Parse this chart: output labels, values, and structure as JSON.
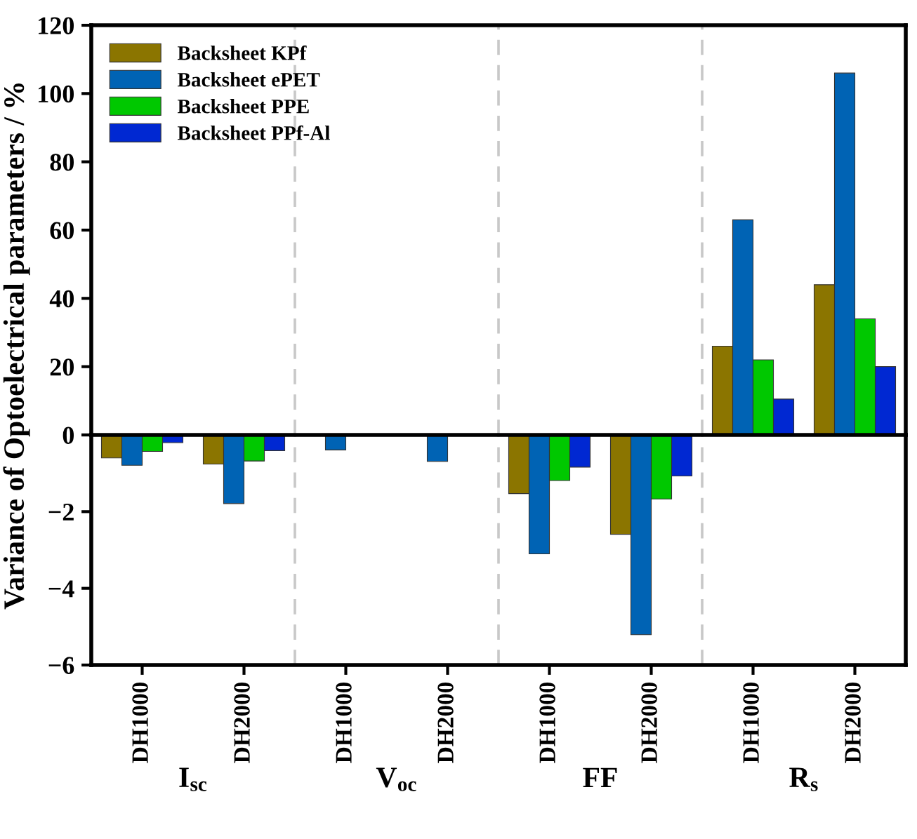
{
  "chart_data": [
    {
      "type": "bar",
      "ylabel": "Variance of Optoelectrical parameters / %",
      "ylim": [
        0,
        120
      ],
      "yticks": [
        {
          "value": 0,
          "label": null
        },
        20,
        40,
        60,
        80,
        100,
        120
      ],
      "tick_labels": "y",
      "legend": "top left",
      "series": [
        {
          "name": "Backsheet KPf",
          "color": "#8b7500",
          "values": [
            null,
            null,
            null,
            null,
            null,
            null,
            26,
            44
          ]
        },
        {
          "name": "Backsheet ePET",
          "color": "#0063b4",
          "values": [
            null,
            null,
            null,
            null,
            null,
            null,
            63,
            106
          ]
        },
        {
          "name": "Backsheet PPE",
          "color": "#00c800",
          "values": [
            null,
            null,
            null,
            null,
            null,
            null,
            22,
            34
          ]
        },
        {
          "name": "Backsheet PPf-Al",
          "color": "#0028d2",
          "values": [
            null,
            null,
            null,
            null,
            null,
            null,
            10.5,
            20
          ]
        }
      ]
    },
    {
      "type": "bar",
      "categories": [
        "DH1000",
        "DH2000",
        "DH1000",
        "DH2000",
        "DH1000",
        "DH2000",
        "DH1000",
        "DH2000"
      ],
      "ylim": [
        -6,
        0
      ],
      "yticks": [
        -6,
        -4,
        -2,
        0
      ],
      "annotations": [
        "I$_{sc}$",
        "V$_{oc}$",
        "FF",
        "R$_{s}$"
      ],
      "series": [
        {
          "color": "#8b7500",
          "values": [
            -0.6,
            -0.76,
            null,
            null,
            -1.53,
            -2.59,
            null,
            null
          ]
        },
        {
          "color": "#0063b4",
          "values": [
            -0.79,
            -1.79,
            -0.39,
            -0.69,
            -3.1,
            -5.21,
            null,
            null
          ]
        },
        {
          "color": "#00c800",
          "values": [
            -0.43,
            -0.68,
            null,
            null,
            -1.19,
            -1.67,
            null,
            null
          ]
        },
        {
          "color": "#0028d2",
          "values": [
            -0.2,
            -0.41,
            null,
            null,
            -0.84,
            -1.07,
            null,
            null
          ]
        }
      ]
    }
  ]
}
